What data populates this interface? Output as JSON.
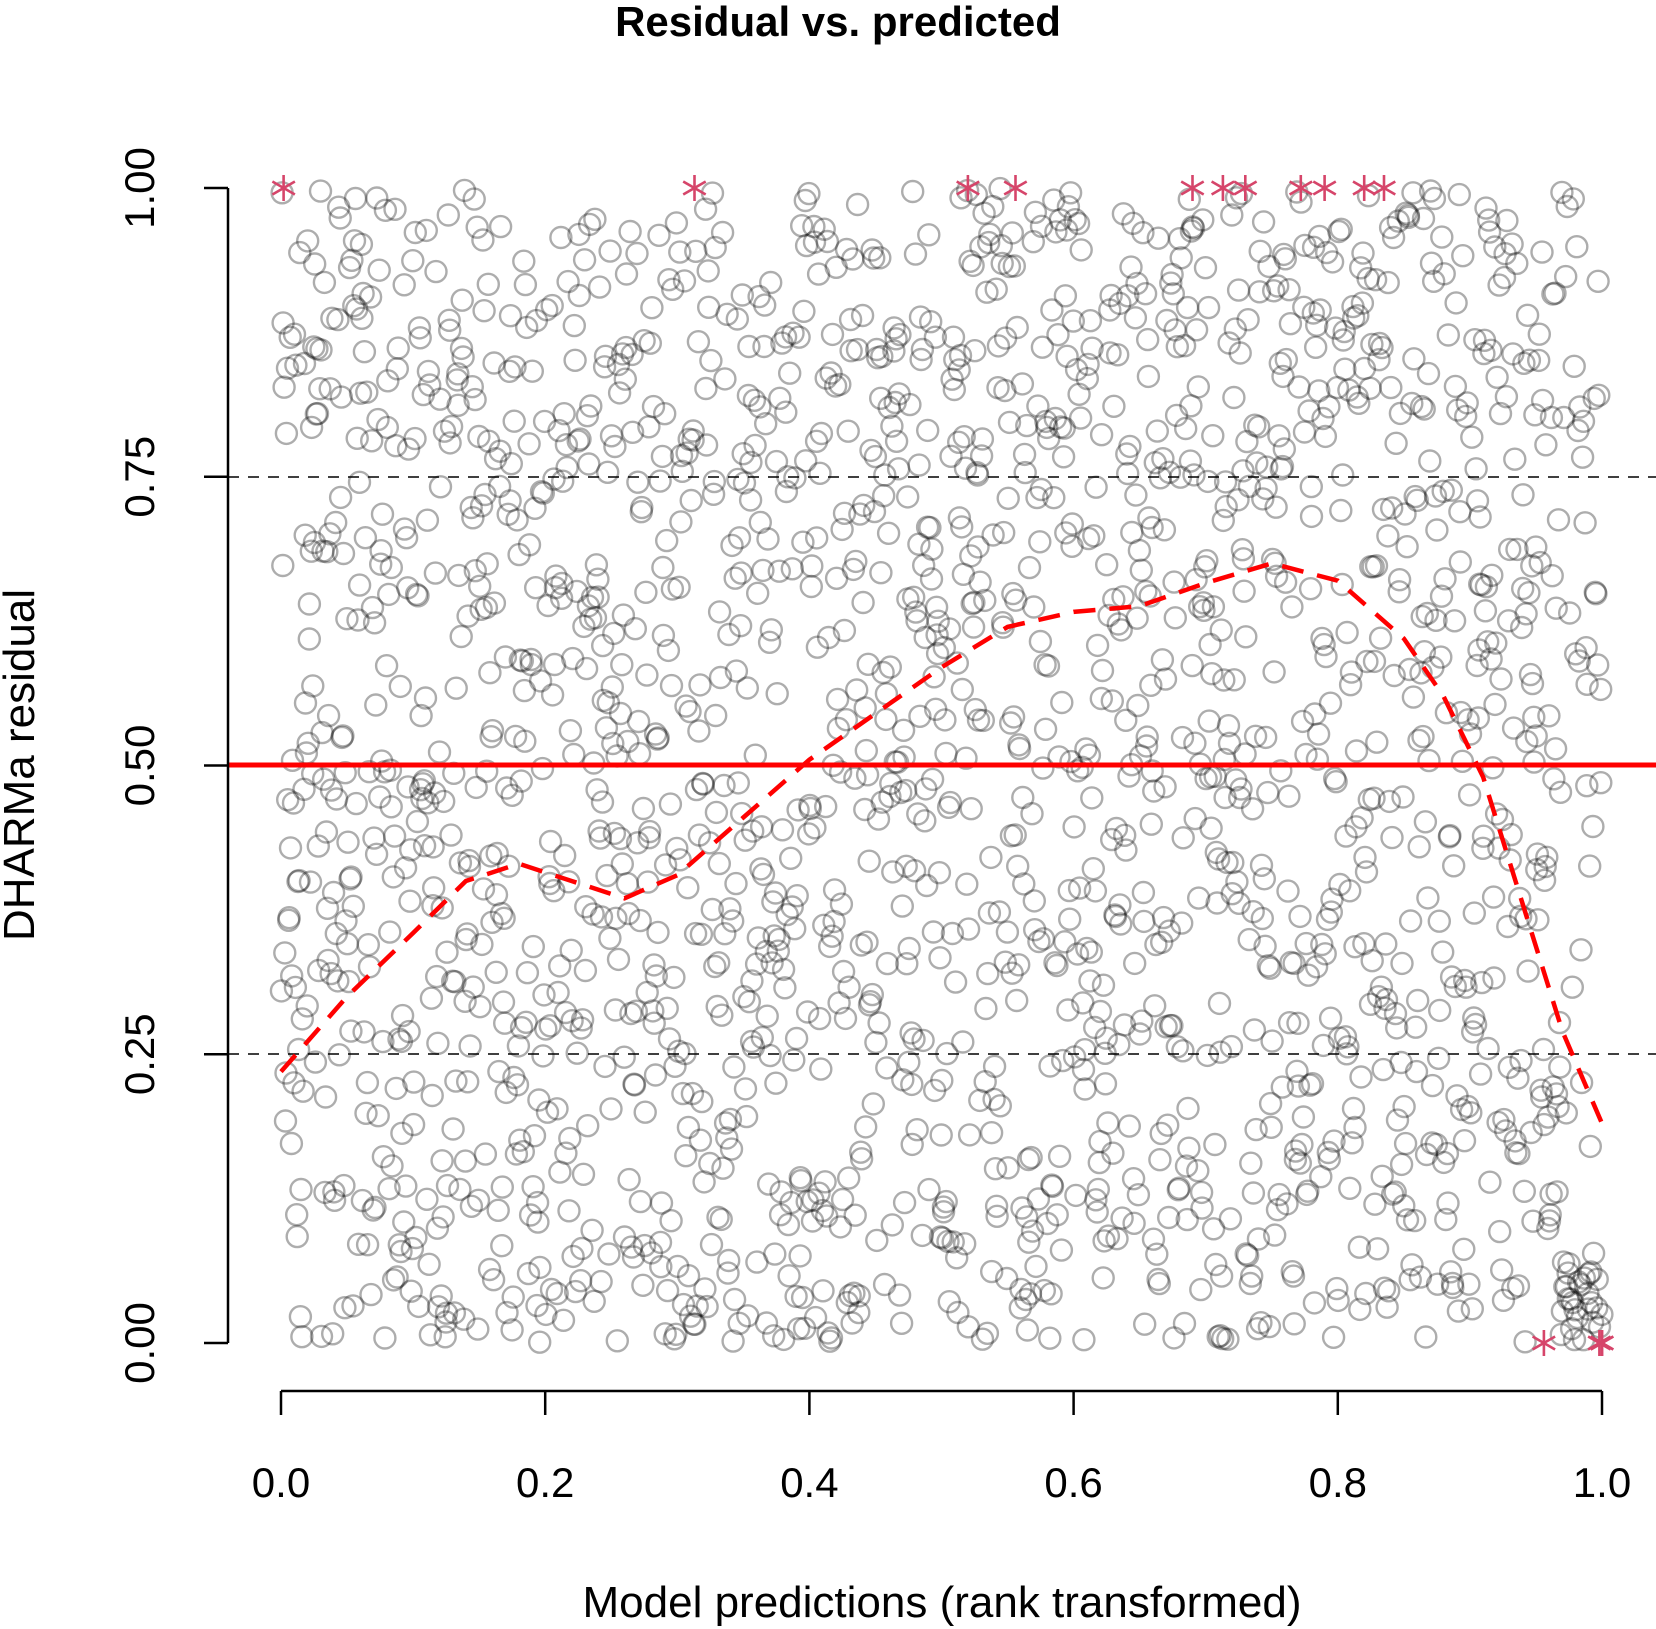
{
  "chart_data": {
    "type": "scatter",
    "title": "Residual vs. predicted",
    "xlabel": "Model predictions (rank transformed)",
    "ylabel": "DHARMa residual",
    "xlim": [
      0,
      1
    ],
    "ylim": [
      0,
      1
    ],
    "x_ticks": [
      "0.0",
      "0.2",
      "0.4",
      "0.6",
      "0.8",
      "1.0"
    ],
    "y_ticks": [
      "0.00",
      "0.25",
      "0.50",
      "0.75",
      "1.00"
    ],
    "reference_lines": [
      {
        "y": 0.5,
        "style": "solid",
        "color": "#ff0000"
      },
      {
        "y": 0.25,
        "style": "dashed",
        "color": "#000000"
      },
      {
        "y": 0.75,
        "style": "dashed",
        "color": "#000000"
      }
    ],
    "points": {
      "description_count": 2000,
      "marker": "open-circle",
      "color": "#000000",
      "alpha": 0.3
    },
    "smooth_line": {
      "color": "#ff0000",
      "style": "dashed",
      "x": [
        0.0,
        0.05,
        0.1,
        0.14,
        0.18,
        0.22,
        0.26,
        0.3,
        0.35,
        0.4,
        0.45,
        0.5,
        0.55,
        0.6,
        0.65,
        0.7,
        0.75,
        0.8,
        0.85,
        0.88,
        0.91,
        0.94,
        0.97,
        1.0
      ],
      "y": [
        0.235,
        0.3,
        0.355,
        0.4,
        0.415,
        0.4,
        0.385,
        0.405,
        0.455,
        0.505,
        0.545,
        0.585,
        0.62,
        0.633,
        0.638,
        0.658,
        0.675,
        0.66,
        0.61,
        0.56,
        0.49,
        0.38,
        0.27,
        0.19
      ]
    },
    "outliers": {
      "marker": "asterisk",
      "color": "#d6456a",
      "top": [
        0.002,
        0.313,
        0.52,
        0.556,
        0.69,
        0.713,
        0.73,
        0.772,
        0.79,
        0.82,
        0.835
      ],
      "bottom": [
        0.956,
        0.998,
        1.0,
        1.0
      ]
    }
  }
}
